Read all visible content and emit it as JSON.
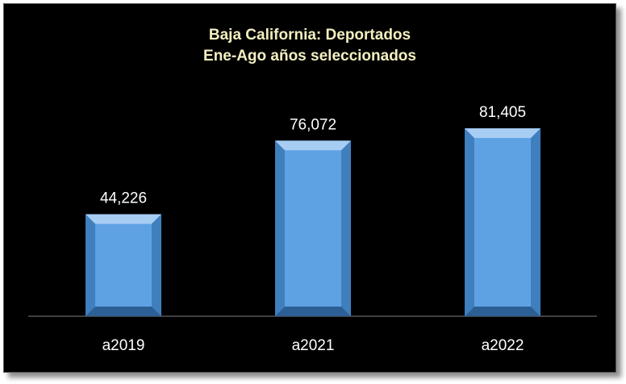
{
  "chart_data": {
    "type": "bar",
    "title": "Baja California: Deportados",
    "subtitle": "Ene-Ago años seleccionados",
    "categories": [
      "a2019",
      "a2021",
      "a2022"
    ],
    "values": [
      44226,
      76072,
      81405
    ],
    "data_labels": [
      "44,226",
      "76,072",
      "81,405"
    ],
    "xlabel": "",
    "ylabel": "",
    "ylim": [
      0,
      100000
    ],
    "grid": false,
    "legend": "none",
    "colors": {
      "background": "#000000",
      "bar_face": "#5fa2e3",
      "title": "#f3efbf",
      "labels": "#ffffff"
    }
  }
}
